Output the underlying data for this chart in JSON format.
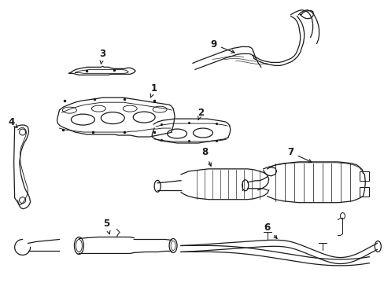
{
  "background_color": "#ffffff",
  "line_color": "#1a1a1a",
  "line_width": 0.9,
  "label_fontsize": 8.5,
  "fig_width": 4.89,
  "fig_height": 3.6,
  "dpi": 100
}
